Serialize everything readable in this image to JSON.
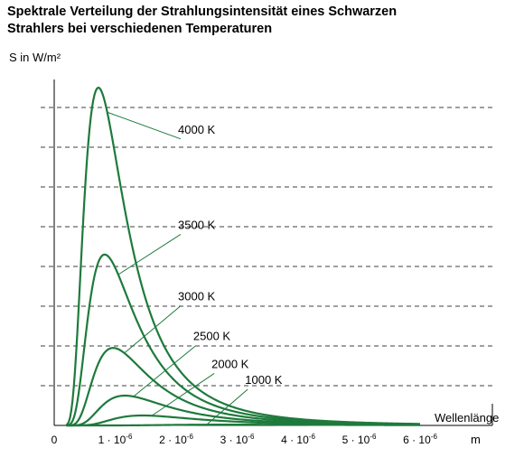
{
  "chart_data": {
    "type": "line",
    "title_line1": "Spektrale Verteilung der Strahlungsintensität eines Schwarzen",
    "title_line2": "Strahlers bei verschiedenen Temperaturen",
    "ylabel": "S in W/m²",
    "xlabel": "Wellenlänge",
    "x_unit_label": "m",
    "xlim": [
      0,
      6.8
    ],
    "ylim": [
      0,
      8.5
    ],
    "x_unit_power": "-6",
    "grid": "horizontal dashed",
    "x_ticks": [
      {
        "value": 0,
        "label": "0"
      },
      {
        "value": 1,
        "label": "1 · 10",
        "exp": "-6"
      },
      {
        "value": 2,
        "label": "2 · 10",
        "exp": "-6"
      },
      {
        "value": 3,
        "label": "3 · 10",
        "exp": "-6"
      },
      {
        "value": 4,
        "label": "4 · 10",
        "exp": "-6"
      },
      {
        "value": 5,
        "label": "5 · 10",
        "exp": "-6"
      },
      {
        "value": 6,
        "label": "6 · 10",
        "exp": "-6"
      }
    ],
    "y_gridlines": [
      1,
      2,
      3,
      4,
      5,
      6,
      7,
      8
    ],
    "series": [
      {
        "name": "4000 K",
        "temperature": 4000,
        "peak_x": 0.72,
        "peak_y": 8.5
      },
      {
        "name": "3500 K",
        "temperature": 3500,
        "peak_x": 0.83,
        "peak_y": 4.3
      },
      {
        "name": "3000 K",
        "temperature": 3000,
        "peak_x": 0.97,
        "peak_y": 1.95
      },
      {
        "name": "2500 K",
        "temperature": 2500,
        "peak_x": 1.16,
        "peak_y": 0.75
      },
      {
        "name": "2000 K",
        "temperature": 2000,
        "peak_x": 1.45,
        "peak_y": 0.25
      },
      {
        "name": "1000 K",
        "temperature": 1000,
        "peak_x": 2.9,
        "peak_y": 0.02
      }
    ],
    "line_color": "#1e7a3c"
  }
}
